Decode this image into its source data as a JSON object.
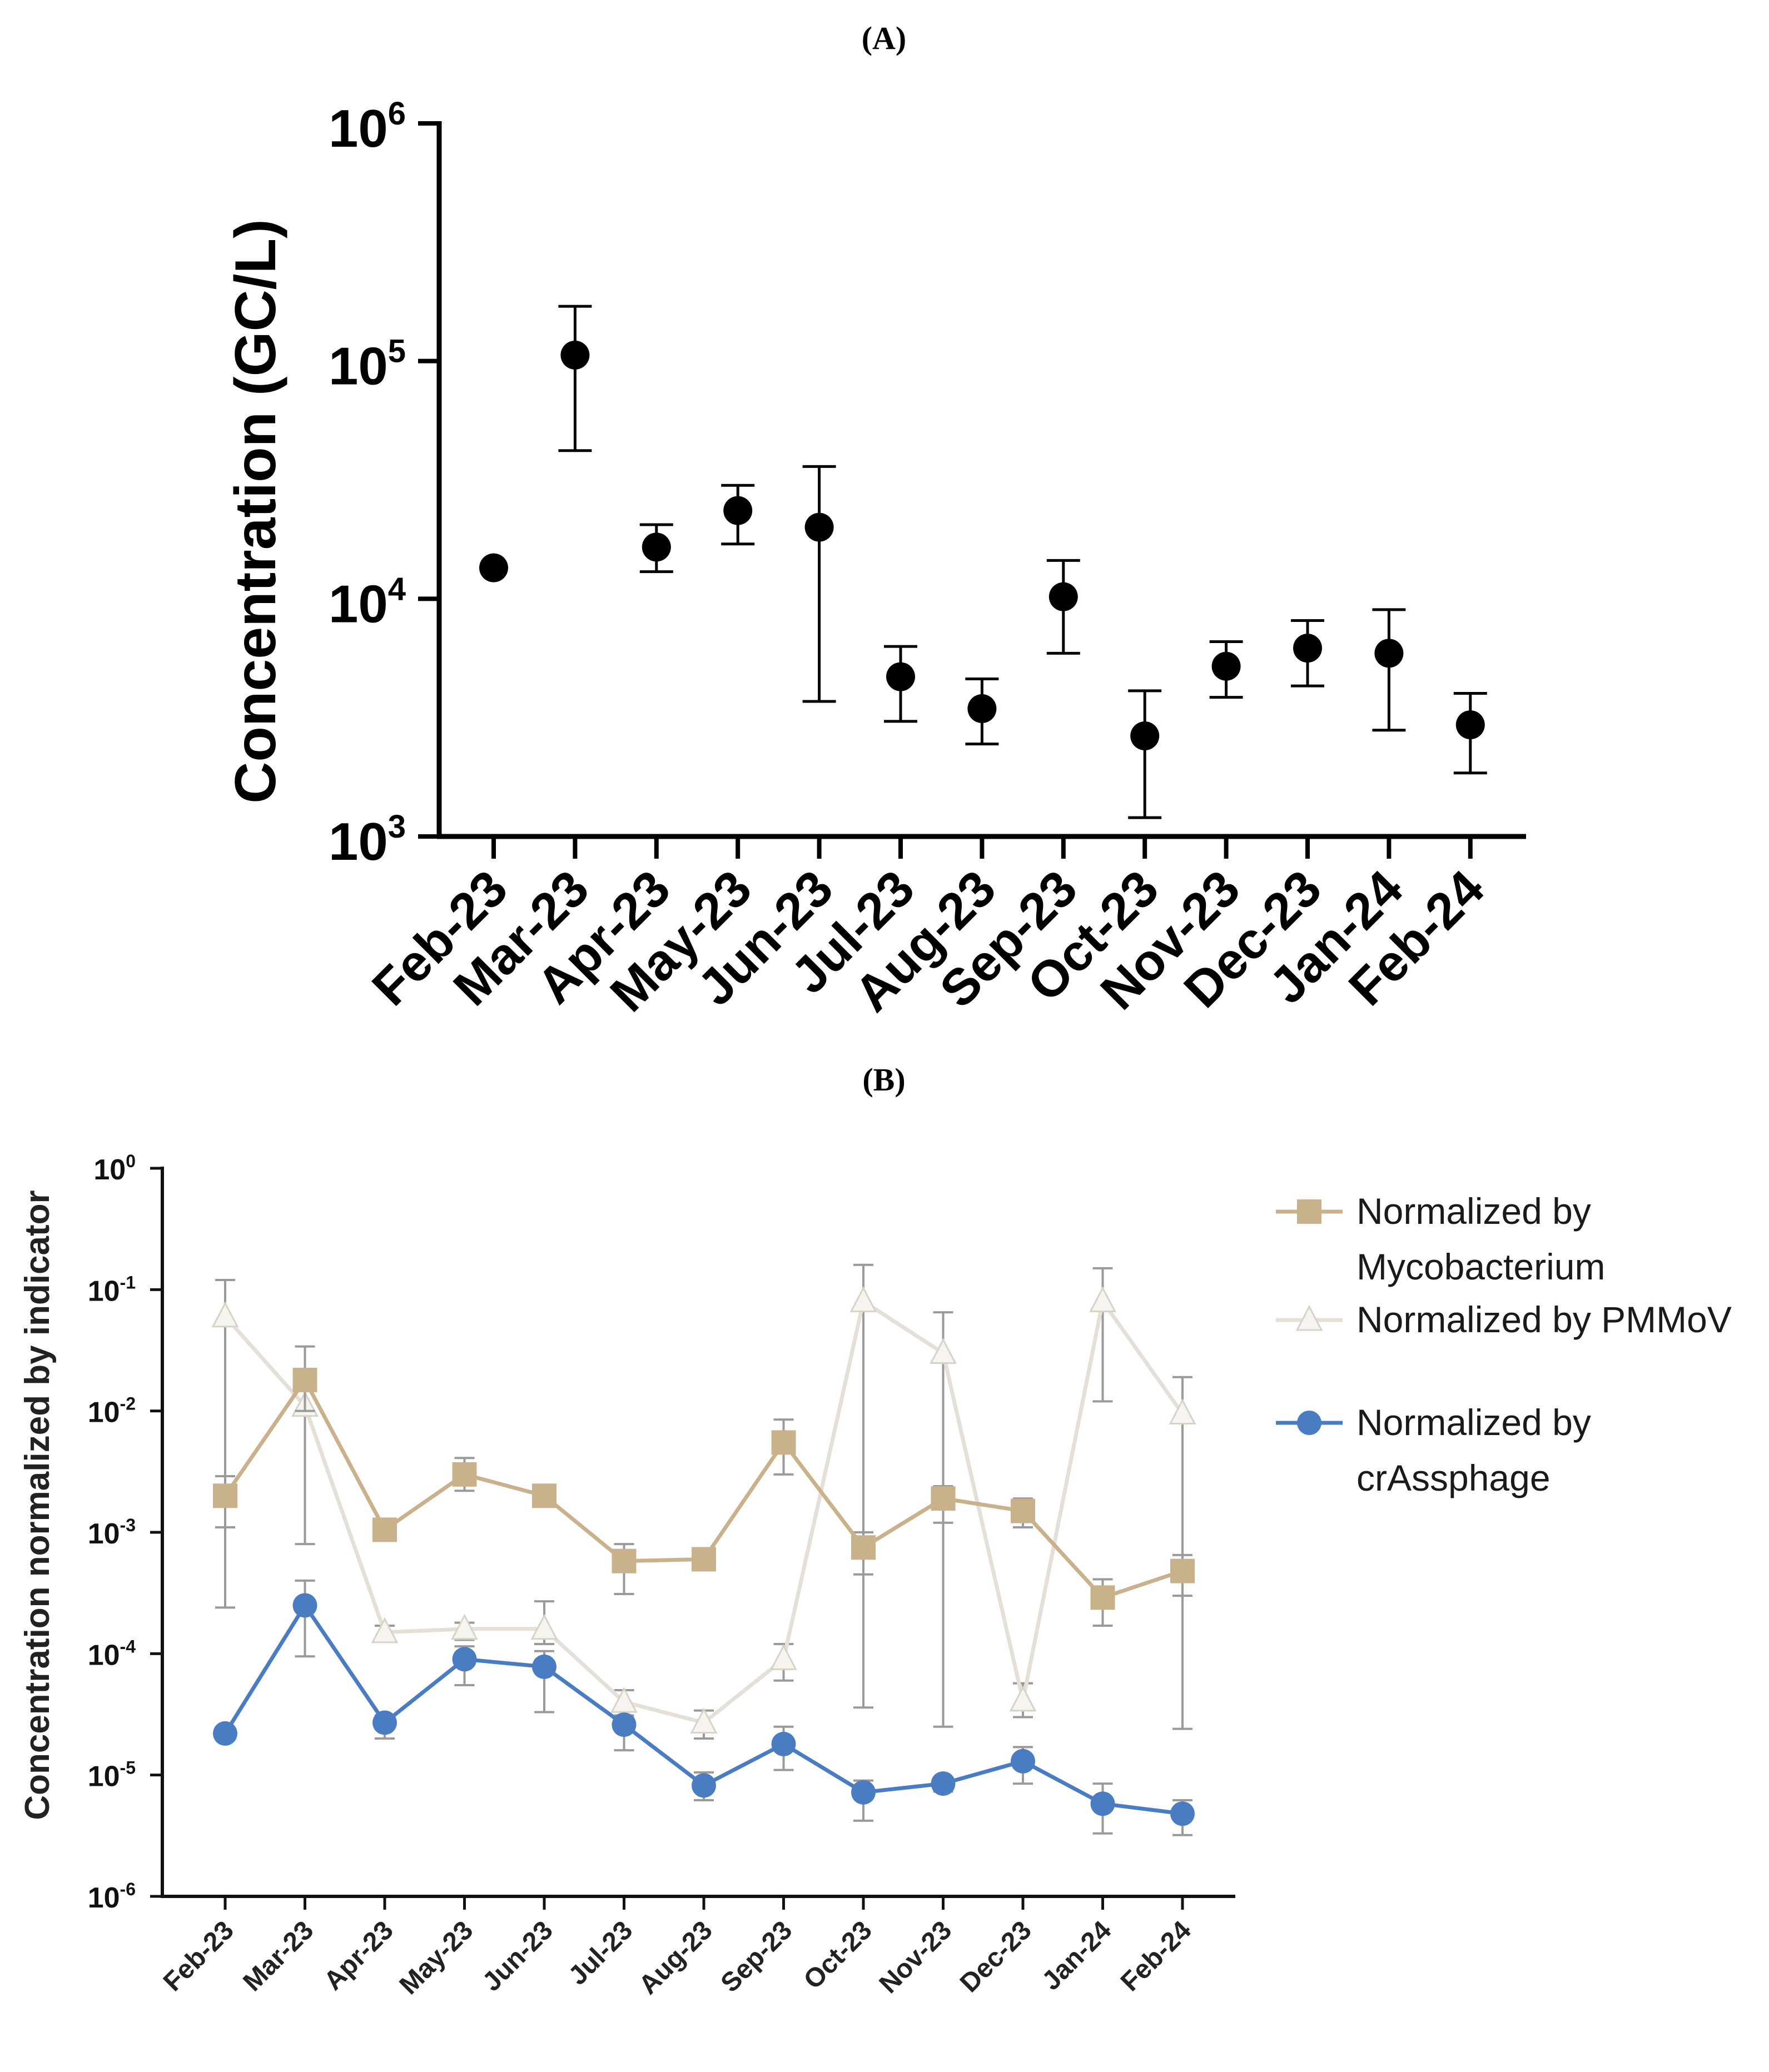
{
  "panel_a_label": "(A)",
  "panel_b_label": "(B)",
  "chart_data": [
    {
      "type": "scatter",
      "panel": "A",
      "ylabel": "Concentration (GC/L)",
      "xlabel": "",
      "yscale": "log",
      "ylim": [
        1000,
        1000000
      ],
      "y_ticks": [
        {
          "base": "10",
          "exp": "3",
          "value": 1000
        },
        {
          "base": "10",
          "exp": "4",
          "value": 10000
        },
        {
          "base": "10",
          "exp": "5",
          "value": 100000
        },
        {
          "base": "10",
          "exp": "6",
          "value": 1000000
        }
      ],
      "categories": [
        "Feb-23",
        "Mar-23",
        "Apr-23",
        "May-23",
        "Jun-23",
        "Jul-23",
        "Aug-23",
        "Sep-23",
        "Oct-23",
        "Nov-23",
        "Dec-23",
        "Jan-24",
        "Feb-24"
      ],
      "series": [
        {
          "name": "Concentration",
          "color": "#000000",
          "values": [
            13500,
            106000,
            16500,
            23500,
            20000,
            4700,
            3450,
            10200,
            2650,
            5200,
            6200,
            5900,
            2950
          ],
          "err_low": [
            null,
            42000,
            13000,
            17000,
            3700,
            3050,
            2450,
            5900,
            1200,
            3850,
            4300,
            2800,
            1850
          ],
          "err_high": [
            null,
            170000,
            20500,
            30000,
            36000,
            6300,
            4600,
            14500,
            4100,
            6600,
            8100,
            9000,
            4000
          ]
        }
      ]
    },
    {
      "type": "line",
      "panel": "B",
      "ylabel": "Concentration normalized by indicator",
      "xlabel": "",
      "yscale": "log",
      "ylim": [
        1e-06,
        1
      ],
      "y_ticks": [
        {
          "base": "10",
          "exp": "-6",
          "value": 1e-06
        },
        {
          "base": "10",
          "exp": "-5",
          "value": 1e-05
        },
        {
          "base": "10",
          "exp": "-4",
          "value": 0.0001
        },
        {
          "base": "10",
          "exp": "-3",
          "value": 0.001
        },
        {
          "base": "10",
          "exp": "-2",
          "value": 0.01
        },
        {
          "base": "10",
          "exp": "-1",
          "value": 0.1
        },
        {
          "base": "10",
          "exp": "0",
          "value": 1
        }
      ],
      "categories": [
        "Feb-23",
        "Mar-23",
        "Apr-23",
        "May-23",
        "Jun-23",
        "Jul-23",
        "Aug-23",
        "Sep-23",
        "Oct-23",
        "Nov-23",
        "Dec-23",
        "Jan-24",
        "Feb-24"
      ],
      "legend_position": "right",
      "series": [
        {
          "name": "Normalized by Mycobacterium",
          "legend_lines": [
            "Normalized by",
            "Mycobacterium"
          ],
          "marker": "square",
          "color": "#c9b18b",
          "values": [
            0.002,
            0.018,
            0.00105,
            0.003,
            0.002,
            0.00058,
            0.0006,
            0.0055,
            0.00075,
            0.0019,
            0.0015,
            0.00029,
            0.00048
          ],
          "err_low": [
            0.0011,
            0.01,
            0.00095,
            0.0022,
            0.0018,
            0.00031,
            0.00052,
            0.003,
            0.00045,
            0.0012,
            0.0011,
            0.00017,
            0.0003
          ],
          "err_high": [
            0.0029,
            0.034,
            0.00115,
            0.0041,
            0.0022,
            0.0008,
            0.00068,
            0.0085,
            0.001,
            0.0024,
            0.0019,
            0.00041,
            0.00065
          ]
        },
        {
          "name": "Normalized by PMMoV",
          "legend_lines": [
            "Normalized by PMMoV"
          ],
          "marker": "triangle",
          "color": "#e4e0d8",
          "values": [
            0.06,
            0.011,
            0.00015,
            0.00016,
            0.00016,
            4e-05,
            2.7e-05,
            9e-05,
            0.08,
            0.03,
            4.1e-05,
            0.08,
            0.0095
          ],
          "err_low": [
            0.00024,
            0.0008,
            0.00013,
            0.00013,
            0.00012,
            3e-05,
            2e-05,
            6e-05,
            3.6e-05,
            2.5e-05,
            3e-05,
            0.012,
            2.4e-05
          ],
          "err_high": [
            0.12,
            0.015,
            0.00017,
            0.00018,
            0.00027,
            5e-05,
            3.4e-05,
            0.00012,
            0.16,
            0.065,
            5.7e-05,
            0.15,
            0.019
          ]
        },
        {
          "name": "Normalized by crAssphage",
          "legend_lines": [
            "Normalized by",
            "crAssphage"
          ],
          "marker": "circle",
          "color": "#4a7cc2",
          "values": [
            2.2e-05,
            0.00025,
            2.7e-05,
            9e-05,
            7.8e-05,
            2.6e-05,
            8.2e-06,
            1.8e-05,
            7.2e-06,
            8.5e-06,
            1.3e-05,
            5.8e-06,
            4.8e-06
          ],
          "err_low": [
            null,
            9.5e-05,
            2e-05,
            5.5e-05,
            3.3e-05,
            1.6e-05,
            6.2e-06,
            1.1e-05,
            4.2e-06,
            7.3e-06,
            8.5e-06,
            3.3e-06,
            3.2e-06
          ],
          "err_high": [
            null,
            0.0004,
            3.1e-05,
            0.000115,
            0.000105,
            3.1e-05,
            1.05e-05,
            2.5e-05,
            9e-06,
            9.2e-06,
            1.7e-05,
            8.5e-06,
            6.2e-06
          ]
        }
      ]
    }
  ]
}
